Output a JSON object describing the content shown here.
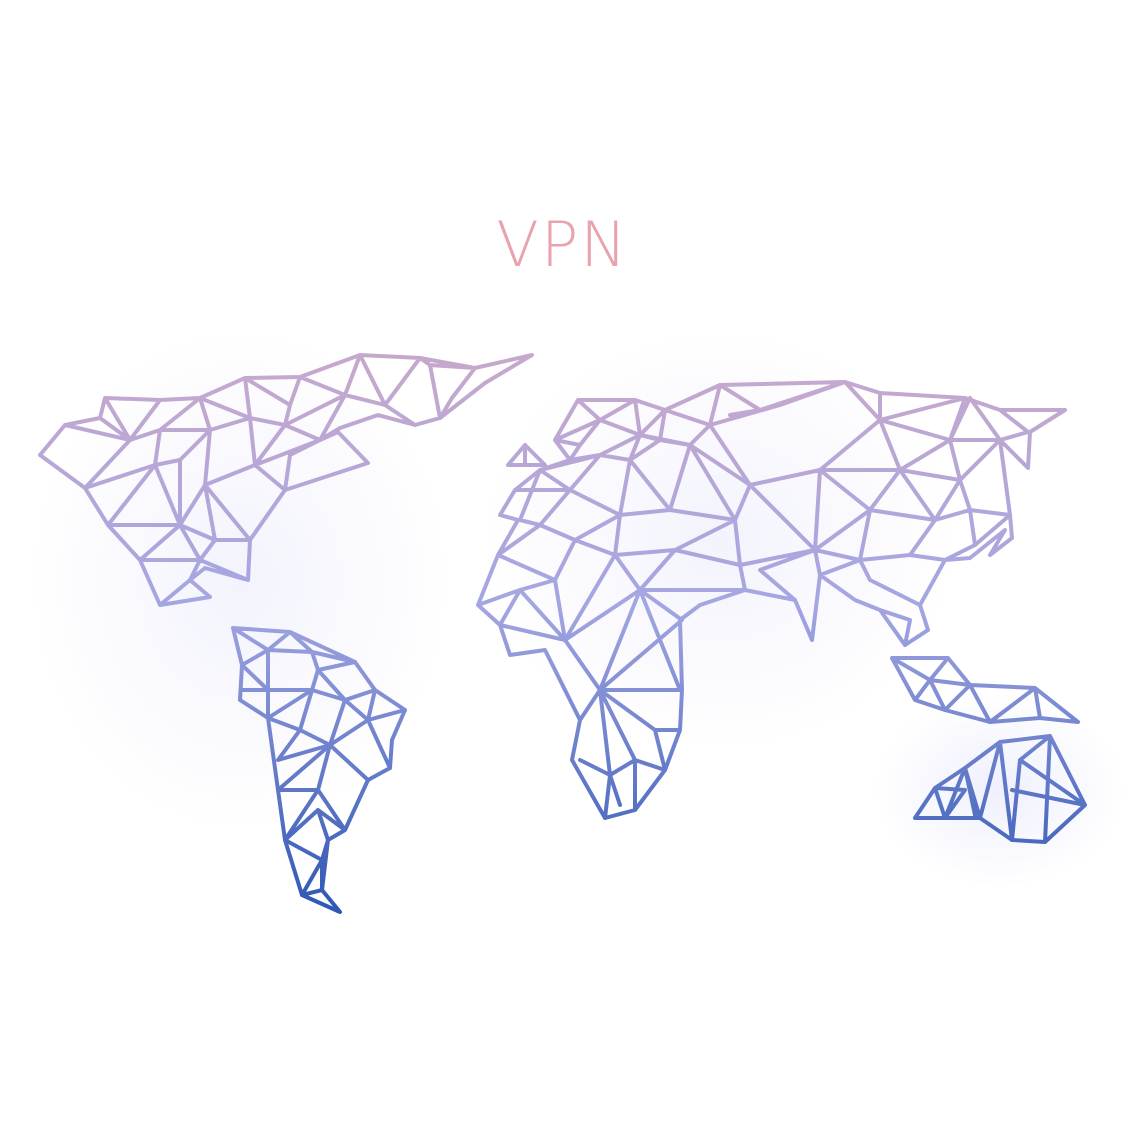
{
  "title": "VPN",
  "colors": {
    "title": "#e8a3ad",
    "mesh_top": "#c8a8cc",
    "mesh_mid": "#a4a6e2",
    "mesh_bottom": "#2e56b4"
  },
  "illustration": {
    "icon": "low-poly-world-map-icon",
    "regions": [
      "north-america",
      "south-america",
      "eurasia",
      "africa",
      "southeast-asia",
      "australia"
    ]
  }
}
